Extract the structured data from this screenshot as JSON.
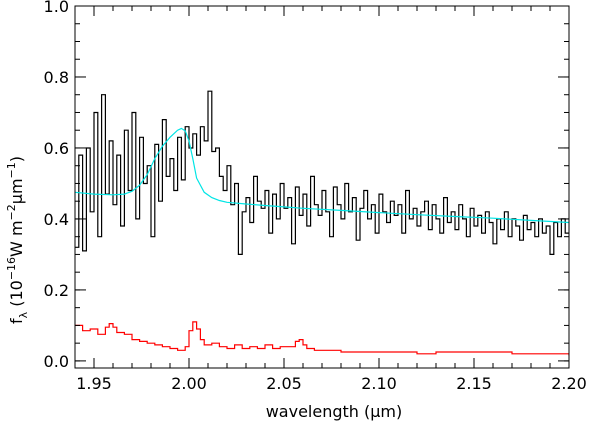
{
  "chart_data": {
    "type": "line",
    "xlabel": "wavelength (μm)",
    "ylabel_parts": {
      "base": "f",
      "sub": "λ",
      "mid": " (10",
      "exp1": "−16",
      "mid2": "W m",
      "exp2": "−2",
      "mid3": "μm",
      "exp3": "−1",
      "end": ")"
    },
    "xlim": [
      1.94,
      2.2
    ],
    "ylim": [
      -0.02,
      1.0
    ],
    "xticks": [
      1.95,
      2.0,
      2.05,
      2.1,
      2.15,
      2.2
    ],
    "xtick_labels": [
      "1.95",
      "2.00",
      "2.05",
      "2.10",
      "2.15",
      "2.20"
    ],
    "yticks": [
      0.0,
      0.2,
      0.4,
      0.6,
      0.8,
      1.0
    ],
    "ytick_labels": [
      "0.0",
      "0.2",
      "0.4",
      "0.6",
      "0.8",
      "1.0"
    ],
    "colors": {
      "spectrum": "#000000",
      "model": "#00e5e5",
      "noise": "#ff0000"
    },
    "series": [
      {
        "style": "histogram",
        "x": [
          1.94,
          1.942,
          1.944,
          1.946,
          1.948,
          1.95,
          1.952,
          1.954,
          1.956,
          1.958,
          1.96,
          1.962,
          1.964,
          1.966,
          1.968,
          1.97,
          1.972,
          1.974,
          1.976,
          1.978,
          1.98,
          1.982,
          1.984,
          1.986,
          1.988,
          1.99,
          1.992,
          1.994,
          1.996,
          1.998,
          2.0,
          2.002,
          2.004,
          2.006,
          2.008,
          2.01,
          2.012,
          2.014,
          2.016,
          2.018,
          2.02,
          2.022,
          2.024,
          2.026,
          2.028,
          2.03,
          2.032,
          2.034,
          2.036,
          2.038,
          2.04,
          2.042,
          2.044,
          2.046,
          2.048,
          2.05,
          2.052,
          2.054,
          2.056,
          2.058,
          2.06,
          2.062,
          2.064,
          2.066,
          2.068,
          2.07,
          2.072,
          2.074,
          2.076,
          2.078,
          2.08,
          2.082,
          2.084,
          2.086,
          2.088,
          2.09,
          2.092,
          2.094,
          2.096,
          2.098,
          2.1,
          2.102,
          2.104,
          2.106,
          2.108,
          2.11,
          2.112,
          2.114,
          2.116,
          2.118,
          2.12,
          2.122,
          2.124,
          2.126,
          2.128,
          2.13,
          2.132,
          2.134,
          2.136,
          2.138,
          2.14,
          2.142,
          2.144,
          2.146,
          2.148,
          2.15,
          2.152,
          2.154,
          2.156,
          2.158,
          2.16,
          2.162,
          2.164,
          2.166,
          2.168,
          2.17,
          2.172,
          2.174,
          2.176,
          2.178,
          2.18,
          2.182,
          2.184,
          2.186,
          2.188,
          2.19,
          2.192,
          2.194,
          2.196,
          2.198
        ],
        "y": [
          0.32,
          0.58,
          0.31,
          0.6,
          0.42,
          0.7,
          0.35,
          0.75,
          0.47,
          0.62,
          0.44,
          0.58,
          0.38,
          0.65,
          0.48,
          0.7,
          0.4,
          0.63,
          0.5,
          0.55,
          0.35,
          0.61,
          0.45,
          0.68,
          0.52,
          0.57,
          0.48,
          0.63,
          0.51,
          0.66,
          0.6,
          0.64,
          0.58,
          0.66,
          0.62,
          0.76,
          0.59,
          0.6,
          0.52,
          0.48,
          0.55,
          0.44,
          0.5,
          0.3,
          0.42,
          0.46,
          0.39,
          0.52,
          0.45,
          0.43,
          0.48,
          0.36,
          0.47,
          0.4,
          0.5,
          0.43,
          0.46,
          0.33,
          0.49,
          0.41,
          0.47,
          0.38,
          0.52,
          0.44,
          0.41,
          0.48,
          0.42,
          0.35,
          0.49,
          0.44,
          0.4,
          0.5,
          0.42,
          0.46,
          0.34,
          0.43,
          0.48,
          0.4,
          0.44,
          0.36,
          0.47,
          0.42,
          0.39,
          0.45,
          0.41,
          0.44,
          0.36,
          0.48,
          0.4,
          0.43,
          0.38,
          0.42,
          0.45,
          0.37,
          0.44,
          0.4,
          0.36,
          0.46,
          0.39,
          0.42,
          0.37,
          0.44,
          0.4,
          0.35,
          0.43,
          0.38,
          0.41,
          0.36,
          0.42,
          0.39,
          0.33,
          0.4,
          0.37,
          0.42,
          0.35,
          0.4,
          0.38,
          0.34,
          0.41,
          0.37,
          0.39,
          0.35,
          0.4,
          0.36,
          0.38,
          0.3,
          0.39,
          0.35,
          0.4,
          0.36
        ]
      },
      {
        "style": "smooth",
        "x": [
          1.94,
          1.95,
          1.96,
          1.966,
          1.97,
          1.974,
          1.978,
          1.982,
          1.986,
          1.99,
          1.994,
          1.996,
          1.998,
          2.0,
          2.002,
          2.004,
          2.008,
          2.012,
          2.016,
          2.02,
          2.03,
          2.04,
          2.05,
          2.06,
          2.08,
          2.1,
          2.12,
          2.14,
          2.16,
          2.18,
          2.2
        ],
        "y": [
          0.475,
          0.47,
          0.468,
          0.47,
          0.478,
          0.495,
          0.525,
          0.57,
          0.605,
          0.63,
          0.65,
          0.655,
          0.648,
          0.62,
          0.57,
          0.515,
          0.475,
          0.46,
          0.452,
          0.447,
          0.442,
          0.438,
          0.434,
          0.43,
          0.424,
          0.418,
          0.412,
          0.407,
          0.402,
          0.396,
          0.39
        ]
      },
      {
        "style": "histogram",
        "x": [
          1.94,
          1.944,
          1.948,
          1.952,
          1.956,
          1.958,
          1.96,
          1.962,
          1.966,
          1.97,
          1.974,
          1.978,
          1.982,
          1.986,
          1.99,
          1.994,
          1.998,
          2.0,
          2.002,
          2.004,
          2.006,
          2.008,
          2.012,
          2.016,
          2.02,
          2.024,
          2.028,
          2.032,
          2.036,
          2.04,
          2.044,
          2.048,
          2.052,
          2.056,
          2.058,
          2.06,
          2.062,
          2.066,
          2.07,
          2.08,
          2.09,
          2.1,
          2.11,
          2.12,
          2.13,
          2.14,
          2.15,
          2.16,
          2.17,
          2.18,
          2.19,
          2.2
        ],
        "y": [
          0.1,
          0.085,
          0.09,
          0.075,
          0.095,
          0.105,
          0.095,
          0.08,
          0.075,
          0.06,
          0.055,
          0.05,
          0.045,
          0.04,
          0.035,
          0.03,
          0.04,
          0.085,
          0.11,
          0.09,
          0.06,
          0.045,
          0.05,
          0.04,
          0.035,
          0.045,
          0.035,
          0.04,
          0.035,
          0.045,
          0.035,
          0.04,
          0.04,
          0.055,
          0.06,
          0.045,
          0.035,
          0.03,
          0.03,
          0.025,
          0.025,
          0.025,
          0.025,
          0.02,
          0.025,
          0.025,
          0.025,
          0.025,
          0.02,
          0.02,
          0.02,
          0.015
        ]
      }
    ]
  }
}
